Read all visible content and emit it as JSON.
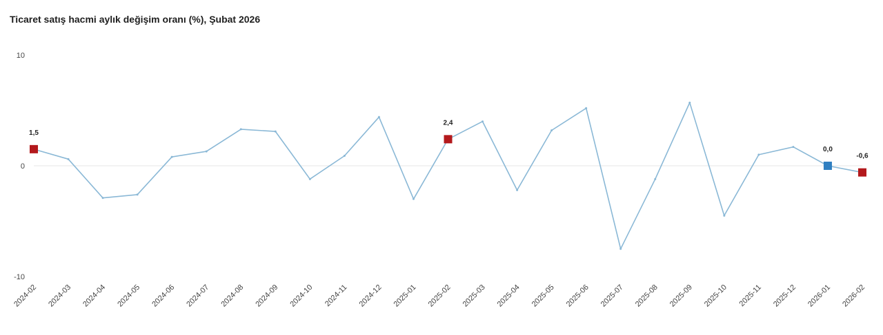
{
  "title": "Ticaret satış hacmi aylık değişim oranı (%), Şubat 2026",
  "colors": {
    "line": "#8ab8d6",
    "marker_red": "#b3191c",
    "marker_blue": "#2f7fc1",
    "zero_line": "#e6e6e6"
  },
  "chart_data": {
    "type": "line",
    "title": "Ticaret satış hacmi aylık değişim oranı (%), Şubat 2026",
    "xlabel": "",
    "ylabel": "",
    "ylim": [
      -10,
      10
    ],
    "yticks": [
      10,
      0,
      -10
    ],
    "grid": false,
    "zero_line": true,
    "categories": [
      "2024-02",
      "2024-03",
      "2024-04",
      "2024-05",
      "2024-06",
      "2024-07",
      "2024-08",
      "2024-09",
      "2024-10",
      "2024-11",
      "2024-12",
      "2025-01",
      "2025-02",
      "2025-03",
      "2025-04",
      "2025-05",
      "2025-06",
      "2025-07",
      "2025-08",
      "2025-09",
      "2025-10",
      "2025-11",
      "2025-12",
      "2026-01",
      "2026-02"
    ],
    "series": [
      {
        "values": [
          1.5,
          0.6,
          -2.9,
          -2.6,
          0.8,
          1.3,
          3.3,
          3.1,
          -1.2,
          0.9,
          4.4,
          -3.0,
          2.4,
          4.0,
          -2.2,
          3.2,
          5.2,
          -7.5,
          -1.2,
          5.7,
          -4.5,
          1.0,
          1.7,
          0.0,
          -0.6
        ]
      }
    ],
    "markers": [
      {
        "index": 0,
        "label": "1,5",
        "color": "red"
      },
      {
        "index": 12,
        "label": "2,4",
        "color": "red"
      },
      {
        "index": 23,
        "label": "0,0",
        "color": "blue"
      },
      {
        "index": 24,
        "label": "-0,6",
        "color": "red"
      }
    ]
  }
}
